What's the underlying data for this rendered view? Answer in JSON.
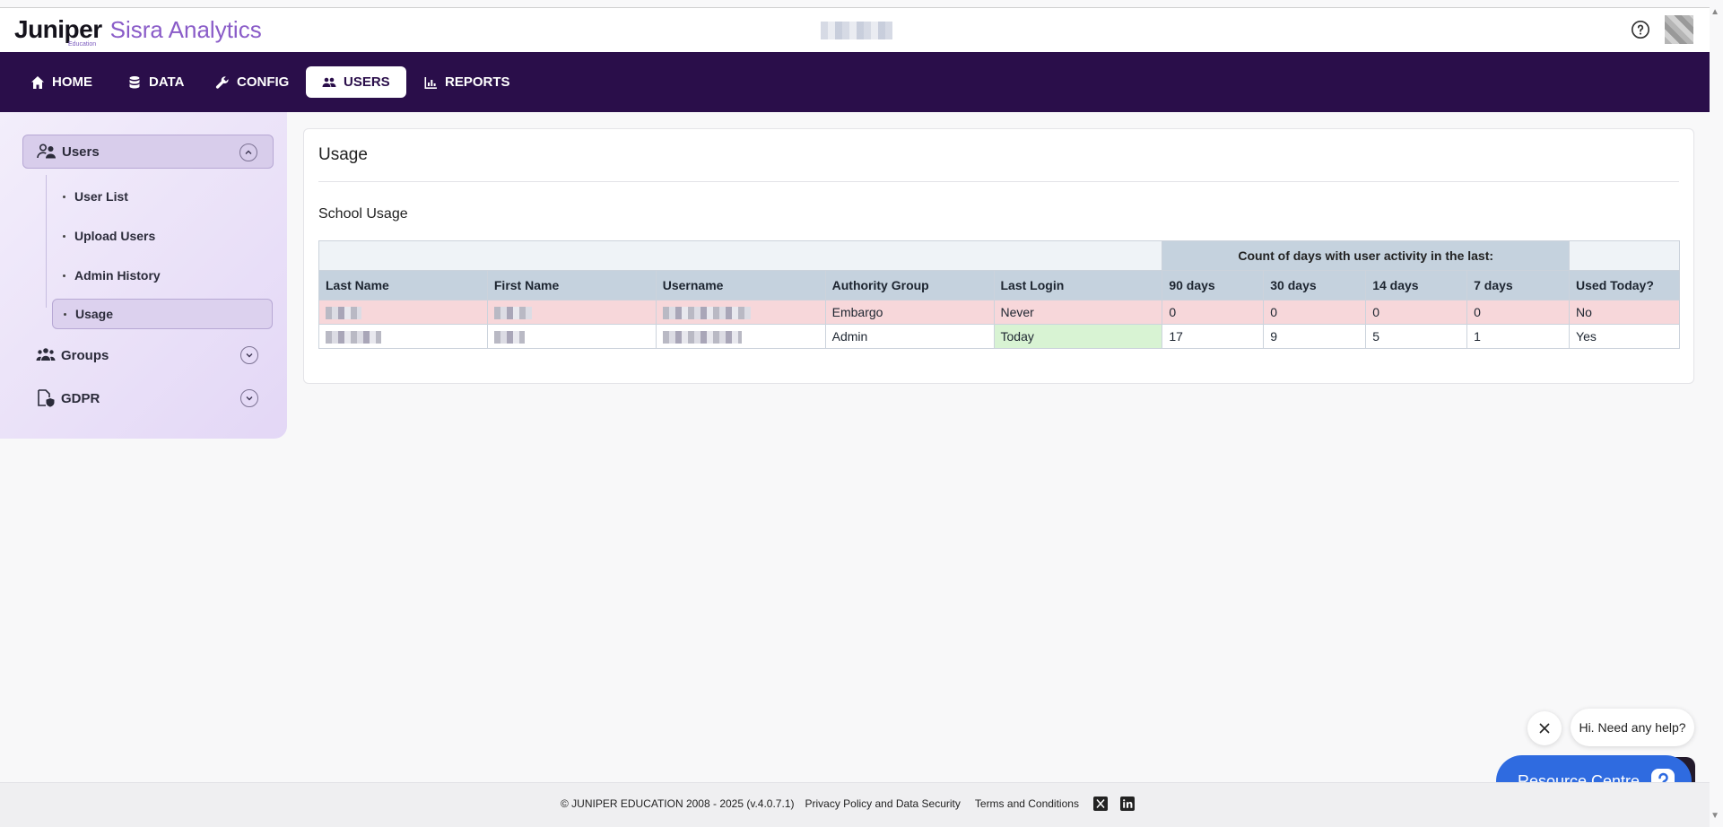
{
  "brand": {
    "name": "Juniper",
    "sub": "Education",
    "product": "Sisra Analytics"
  },
  "nav": {
    "items": [
      {
        "label": "HOME",
        "icon": "home-icon"
      },
      {
        "label": "DATA",
        "icon": "database-icon"
      },
      {
        "label": "CONFIG",
        "icon": "wrench-icon"
      },
      {
        "label": "USERS",
        "icon": "users-icon",
        "active": true
      },
      {
        "label": "REPORTS",
        "icon": "bar-chart-icon"
      }
    ]
  },
  "sidebar": {
    "groups": [
      {
        "label": "Users",
        "icon": "users-icon",
        "expanded": true
      },
      {
        "label": "Groups",
        "icon": "group-icon",
        "expanded": false
      },
      {
        "label": "GDPR",
        "icon": "document-shield-icon",
        "expanded": false
      }
    ],
    "sub_items": [
      {
        "label": "User List"
      },
      {
        "label": "Upload Users"
      },
      {
        "label": "Admin History"
      },
      {
        "label": "Usage",
        "active": true
      }
    ]
  },
  "main": {
    "title": "Usage",
    "section_title": "School Usage",
    "table": {
      "group_header": "Count of days with user activity in the last:",
      "columns": [
        "Last Name",
        "First Name",
        "Username",
        "Authority Group",
        "Last Login",
        "90 days",
        "30 days",
        "14 days",
        "7 days",
        "Used Today?"
      ],
      "rows": [
        {
          "authority_group": "Embargo",
          "last_login": "Never",
          "d90": "0",
          "d30": "0",
          "d14": "0",
          "d7": "0",
          "used_today": "No"
        },
        {
          "authority_group": "Admin",
          "last_login": "Today",
          "d90": "17",
          "d30": "9",
          "d14": "5",
          "d7": "1",
          "used_today": "Yes"
        }
      ]
    }
  },
  "help_widget": {
    "bubble_text": "Hi. Need any help?",
    "button_label": "Resource Centre"
  },
  "footer": {
    "copyright": "© JUNIPER EDUCATION 2008 - 2025 (v.4.0.7.1)",
    "links": [
      "Privacy Policy and Data Security",
      "Terms and Conditions"
    ]
  },
  "colors": {
    "nav_bg": "#2a0e4a",
    "brand_purple": "#8a5cc8",
    "header_cell": "#c5d2de",
    "row_warning": "#f7d7da",
    "row_success": "#d8f3d3",
    "resource_blue": "#2f6be0"
  }
}
